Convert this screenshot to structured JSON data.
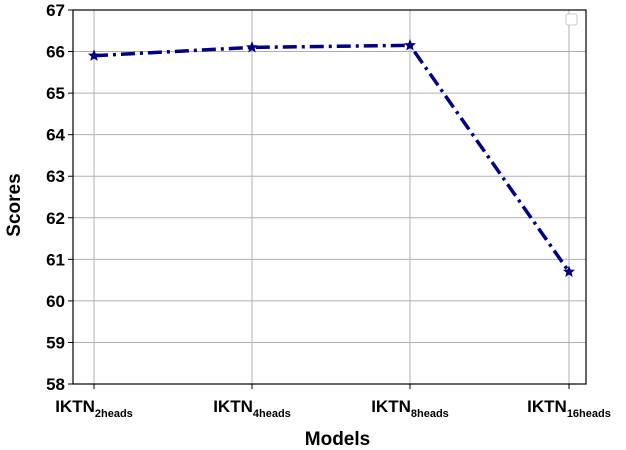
{
  "chart_data": {
    "type": "line",
    "xlabel": "Models",
    "ylabel": "Scores",
    "ylim": [
      58,
      67
    ],
    "yticks": [
      58,
      59,
      60,
      61,
      62,
      63,
      64,
      65,
      66,
      67
    ],
    "categories": [
      {
        "base": "IKTN",
        "sub": "2heads"
      },
      {
        "base": "IKTN",
        "sub": "4heads"
      },
      {
        "base": "IKTN",
        "sub": "8heads"
      },
      {
        "base": "IKTN",
        "sub": "16heads"
      }
    ],
    "series": [
      {
        "values": [
          65.9,
          66.1,
          66.15,
          60.7
        ],
        "color": "#000080",
        "linestyle": "dash-dot",
        "marker": "star"
      }
    ],
    "grid": true,
    "legend": "top-right (empty)"
  }
}
